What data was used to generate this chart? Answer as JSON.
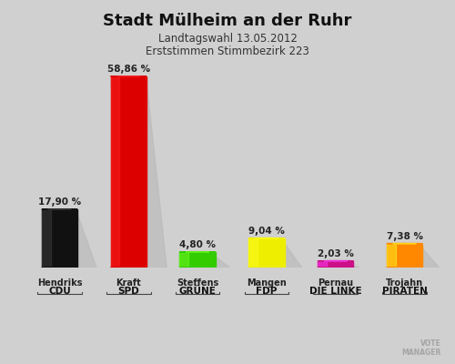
{
  "title": "Stadt Mülheim an der Ruhr",
  "subtitle1": "Landtagswahl 13.05.2012",
  "subtitle2": "Erststimmen Stimmbezirk 223",
  "candidates": [
    "Hendriks",
    "Kraft",
    "Steffens",
    "Mangen",
    "Pernau",
    "Trojahn"
  ],
  "parties": [
    "CDU",
    "SPD",
    "GRÜNE",
    "FDP",
    "DIE LINKE",
    "PIRATEN"
  ],
  "values": [
    17.9,
    58.86,
    4.8,
    9.04,
    2.03,
    7.38
  ],
  "value_labels": [
    "17,90 %",
    "58,86 %",
    "4,80 %",
    "9,04 %",
    "2,03 %",
    "7,38 %"
  ],
  "bar_colors": [
    "#111111",
    "#dd0000",
    "#33cc00",
    "#eeee00",
    "#cc1188",
    "#ff8800"
  ],
  "shadow_color": "#bbbbbb",
  "background_color": "#d0d0d0",
  "ylim": [
    0,
    65
  ]
}
